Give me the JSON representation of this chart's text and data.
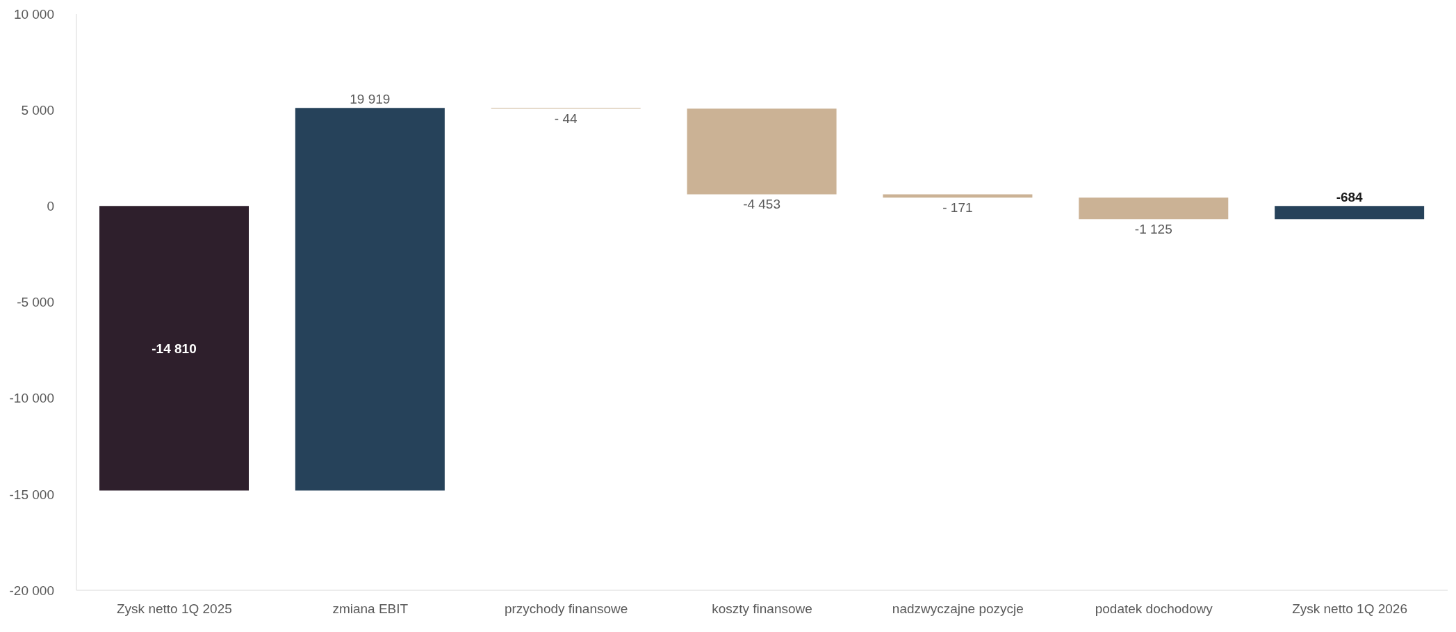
{
  "chart_data": {
    "type": "bar",
    "categories": [
      "Zysk netto 1Q 2025",
      "zmiana EBIT",
      "przychody finansowe",
      "koszty finansowe",
      "nadzwyczajne pozycje",
      "podatek dochodowy",
      "Zysk netto 1Q 2026"
    ],
    "values": [
      -14810,
      19919,
      -44,
      -4453,
      -171,
      -1125,
      -684
    ],
    "base": [
      0,
      -14810,
      5109,
      5065,
      612,
      441,
      0
    ],
    "colors": [
      "#2e1f2c",
      "#26425a",
      "#cbb295",
      "#cbb295",
      "#cbb295",
      "#cbb295",
      "#26425a"
    ],
    "value_labels": [
      "-14 810",
      "19 919",
      "- 44",
      "-4 453",
      "- 171",
      "-1 125",
      "-684"
    ],
    "ylim": [
      -20000,
      10000
    ],
    "yticks": [
      {
        "value": -20000,
        "label": "-20 000"
      },
      {
        "value": -15000,
        "label": "-15 000"
      },
      {
        "value": -10000,
        "label": "-10 000"
      },
      {
        "value": -5000,
        "label": "-5 000"
      },
      {
        "value": 0,
        "label": "0"
      },
      {
        "value": 5000,
        "label": "5 000"
      },
      {
        "value": 10000,
        "label": "10 000"
      }
    ],
    "grid": false,
    "legend": false
  }
}
